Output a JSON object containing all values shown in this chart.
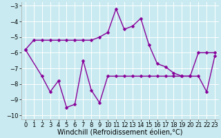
{
  "background_color": "#c8eaf0",
  "line_color": "#880099",
  "grid_color": "#ffffff",
  "xlim": [
    -0.5,
    23.5
  ],
  "ylim": [
    -10.25,
    -2.75
  ],
  "xtick_vals": [
    0,
    1,
    2,
    3,
    4,
    5,
    6,
    7,
    8,
    9,
    10,
    11,
    12,
    13,
    14,
    15,
    16,
    17,
    18,
    19,
    20,
    21,
    22,
    23
  ],
  "ytick_vals": [
    -10,
    -9,
    -8,
    -7,
    -6,
    -5,
    -4,
    -3
  ],
  "xlabel": "Windchill (Refroidissement éolien,°C)",
  "line1_x": [
    0,
    1,
    2,
    3,
    4,
    5,
    6,
    7,
    8,
    9,
    10,
    11,
    12,
    13,
    14,
    15,
    16,
    17,
    18,
    19,
    20,
    21,
    22,
    23
  ],
  "line1_y": [
    -5.8,
    -5.2,
    -5.2,
    -5.2,
    -5.2,
    -5.2,
    -5.2,
    -5.2,
    -5.2,
    -5.0,
    -4.7,
    -3.2,
    -4.5,
    -4.3,
    -3.8,
    -5.5,
    -6.7,
    -6.9,
    -7.3,
    -7.5,
    -7.5,
    -6.0,
    -6.0,
    -6.0
  ],
  "line2_x": [
    0,
    2,
    3,
    4,
    5,
    6,
    7,
    8,
    9,
    10,
    11,
    12,
    13,
    14,
    15,
    16,
    17,
    18,
    19,
    20,
    21,
    22,
    23
  ],
  "line2_y": [
    -5.8,
    -7.5,
    -8.5,
    -7.8,
    -9.5,
    -9.3,
    -6.5,
    -8.4,
    -9.2,
    -7.5,
    -7.5,
    -7.5,
    -7.5,
    -7.5,
    -7.5,
    -7.5,
    -7.5,
    -7.5,
    -7.5,
    -7.5,
    -7.5,
    -8.5,
    -6.2
  ],
  "xlabel_fontsize": 7,
  "tick_fontsize": 6,
  "line_width": 1.0,
  "marker": "D",
  "marker_size": 2.5
}
